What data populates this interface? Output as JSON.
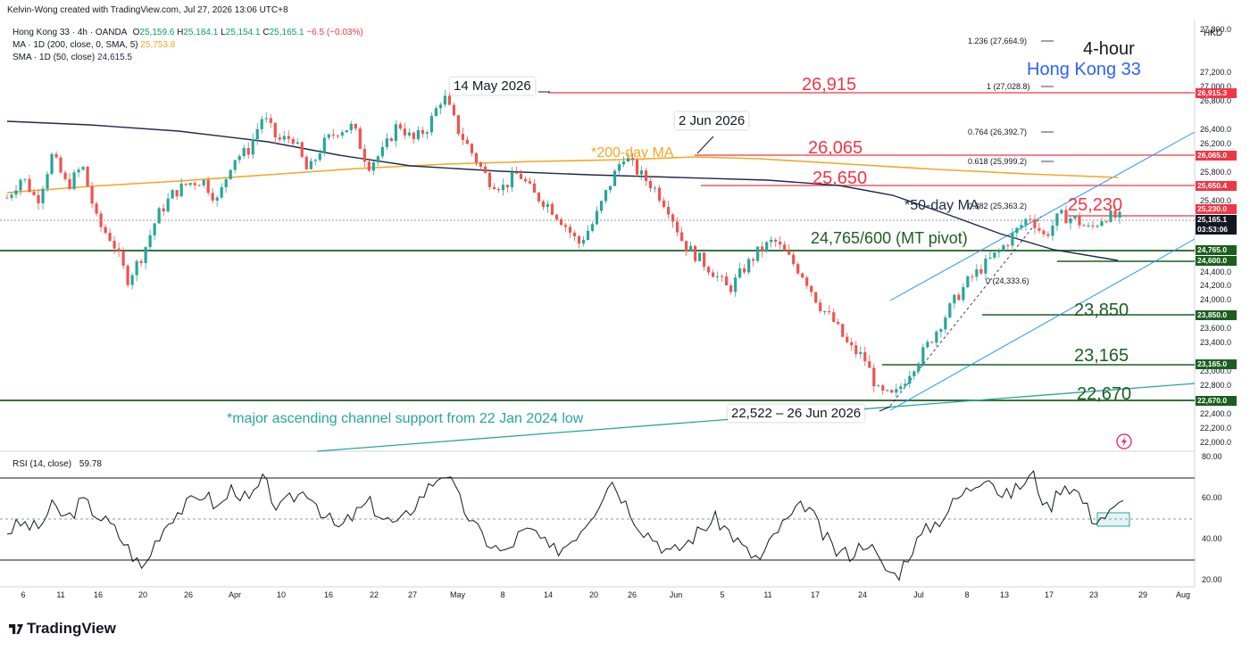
{
  "header": {
    "creator": "Kelvin-Wong created with TradingView.com, Jul 27, 2026 13:06 UTC+8",
    "symbol": "Hong Kong 33 · 4h · OANDA",
    "o_label": "O",
    "o": "25,159.6",
    "h_label": "H",
    "h": "25,184.1",
    "l_label": "L",
    "l": "25,154.1",
    "c_label": "C",
    "c": "25,165.1",
    "chg": "−6.5 (−0.03%)",
    "ma200_label": "MA · 1D (200, close, 0, SMA, 5)",
    "ma200_value": "25,753.8",
    "sma50_label": "SMA · 1D (50, close)",
    "sma50_value": "24,615.5",
    "currency": "HKD"
  },
  "titles": {
    "timeframe": "4-hour",
    "instrument": "Hong Kong 33"
  },
  "annotations": {
    "high_may": "14 May 2026",
    "high_jun": "2 Jun 2026",
    "ma200": "*200-day MA",
    "ma50": "*50-day MA",
    "pivot": "24,765/600 (MT pivot)",
    "low_jun": "22,522 – 26 Jun 2026",
    "channel": "*major ascending channel support from 22 Jan 2024 low",
    "lvl_26915": "26,915",
    "lvl_26065": "26,065",
    "lvl_25650": "25,650",
    "lvl_25230": "25,230",
    "lvl_23850": "23,850",
    "lvl_23165": "23,165",
    "lvl_22670": "22,670"
  },
  "fib_labels": [
    {
      "text": "1.236 (27,664.9)"
    },
    {
      "text": "1 (27,028.8)"
    },
    {
      "text": "0.764 (26,392.7)"
    },
    {
      "text": "0.618 (25,999.2)"
    },
    {
      "text": "0.382 (25,363.2)"
    },
    {
      "text": "0 (24,333.6)"
    }
  ],
  "price_axis": {
    "ticks": [
      "27,800.0",
      "27,200.0",
      "27,000.0",
      "26,800.0",
      "26,400.0",
      "26,200.0",
      "25,800.0",
      "25,400.0",
      "24,400.0",
      "24,200.0",
      "24,000.0",
      "23,600.0",
      "23,400.0",
      "23,000.0",
      "22,800.0",
      "22,400.0",
      "22,200.0",
      "22,000.0"
    ],
    "boxes": [
      {
        "text": "26,915.3",
        "color": "#f23645"
      },
      {
        "text": "26,065.0",
        "color": "#f23645"
      },
      {
        "text": "25,650.4",
        "color": "#f23645"
      },
      {
        "text": "25,230.0",
        "color": "#f23645"
      },
      {
        "text": "25,165.1",
        "color": "#131722"
      },
      {
        "text": "03:53:06",
        "color": "#131722"
      },
      {
        "text": "24,765.0",
        "color": "#1b5e20"
      },
      {
        "text": "24,600.0",
        "color": "#1b5e20"
      },
      {
        "text": "23,850.0",
        "color": "#1b5e20"
      },
      {
        "text": "23,165.0",
        "color": "#1b5e20"
      },
      {
        "text": "22,670.0",
        "color": "#1b5e20"
      }
    ]
  },
  "rsi": {
    "label": "RSI (14, close)",
    "value": "59.78",
    "ticks": [
      "80.00",
      "60.00",
      "40.00",
      "20.00"
    ]
  },
  "time_axis": [
    "6",
    "11",
    "16",
    "20",
    "26",
    "Apr",
    "10",
    "16",
    "22",
    "27",
    "May",
    "8",
    "14",
    "20",
    "26",
    "Jun",
    "5",
    "11",
    "17",
    "24",
    "Jul",
    "8",
    "13",
    "17",
    "23",
    "29",
    "Aug"
  ],
  "footer": {
    "brand": "TradingView"
  },
  "colors": {
    "resistance": "#f23645",
    "support": "#1b5e20",
    "ma200": "#f5a623",
    "ma50": "#1e2a4a",
    "channel": "#2196f3",
    "major_channel": "#26a69a",
    "candle_up": "#26a69a",
    "candle_down": "#ef5350",
    "title_blue": "#2962ff"
  },
  "chart_data": {
    "type": "candlestick",
    "y_range": [
      22000,
      27900
    ],
    "rsi_range": [
      20,
      80
    ],
    "levels": [
      26915.3,
      26065.0,
      25650.4,
      25230.0,
      24765.0,
      24600.0,
      23850.0,
      23165.0,
      22670.0
    ],
    "price_path": [
      25450,
      25750,
      25400,
      26050,
      25600,
      25900,
      25100,
      24850,
      24300,
      24650,
      25200,
      25500,
      25650,
      25700,
      25400,
      26000,
      26100,
      26600,
      26250,
      26300,
      25800,
      26200,
      26400,
      26450,
      25900,
      26100,
      26500,
      26250,
      26450,
      26900,
      26400,
      26050,
      25700,
      25600,
      25800,
      25500,
      25350,
      25100,
      24800,
      25100,
      25600,
      26050,
      25800,
      25600,
      25300,
      24800,
      24600,
      24400,
      24150,
      24450,
      24700,
      24850,
      24600,
      24350,
      23950,
      23700,
      23350,
      23200,
      22700,
      22650,
      23000,
      23300,
      23650,
      24000,
      24300,
      24500,
      24700,
      24950,
      25200,
      24900,
      25200,
      25150,
      25000,
      25200,
      25165
    ],
    "rsi_path": [
      44,
      48,
      45,
      56,
      50,
      59,
      52,
      46,
      36,
      25,
      42,
      52,
      57,
      63,
      55,
      66,
      58,
      69,
      54,
      61,
      64,
      52,
      45,
      52,
      58,
      50,
      47,
      57,
      66,
      74,
      59,
      46,
      38,
      33,
      43,
      44,
      34,
      37,
      45,
      55,
      70,
      58,
      46,
      40,
      33,
      38,
      45,
      50,
      43,
      34,
      30,
      44,
      51,
      58,
      43,
      34,
      33,
      40,
      27,
      22,
      36,
      45,
      51,
      60,
      66,
      73,
      60,
      65,
      72,
      54,
      68,
      63,
      50,
      52,
      58
    ]
  }
}
